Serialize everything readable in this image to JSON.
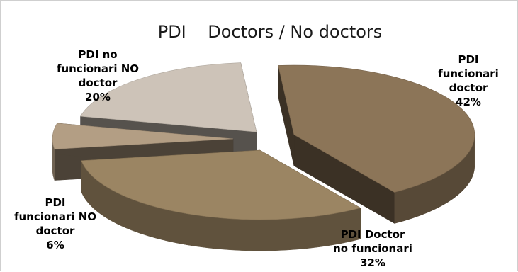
{
  "chart_data": {
    "type": "pie",
    "style": "3d-exploded",
    "title": "PDI    Doctors / No doctors",
    "series": [
      {
        "label_lines": [
          "PDI",
          "funcionari",
          "doctor",
          "42%"
        ],
        "value": 42,
        "color": "#8c7558"
      },
      {
        "label_lines": [
          "PDI Doctor",
          "no funcionari",
          "32%"
        ],
        "value": 32,
        "color": "#9b8563"
      },
      {
        "label_lines": [
          "PDI",
          "funcionari NO",
          "doctor",
          "6%"
        ],
        "value": 6,
        "color": "#b39e84"
      },
      {
        "label_lines": [
          "PDI no",
          "funcionari NO",
          "doctor",
          "20%"
        ],
        "value": 20,
        "color": "#cdc3b8"
      }
    ]
  }
}
